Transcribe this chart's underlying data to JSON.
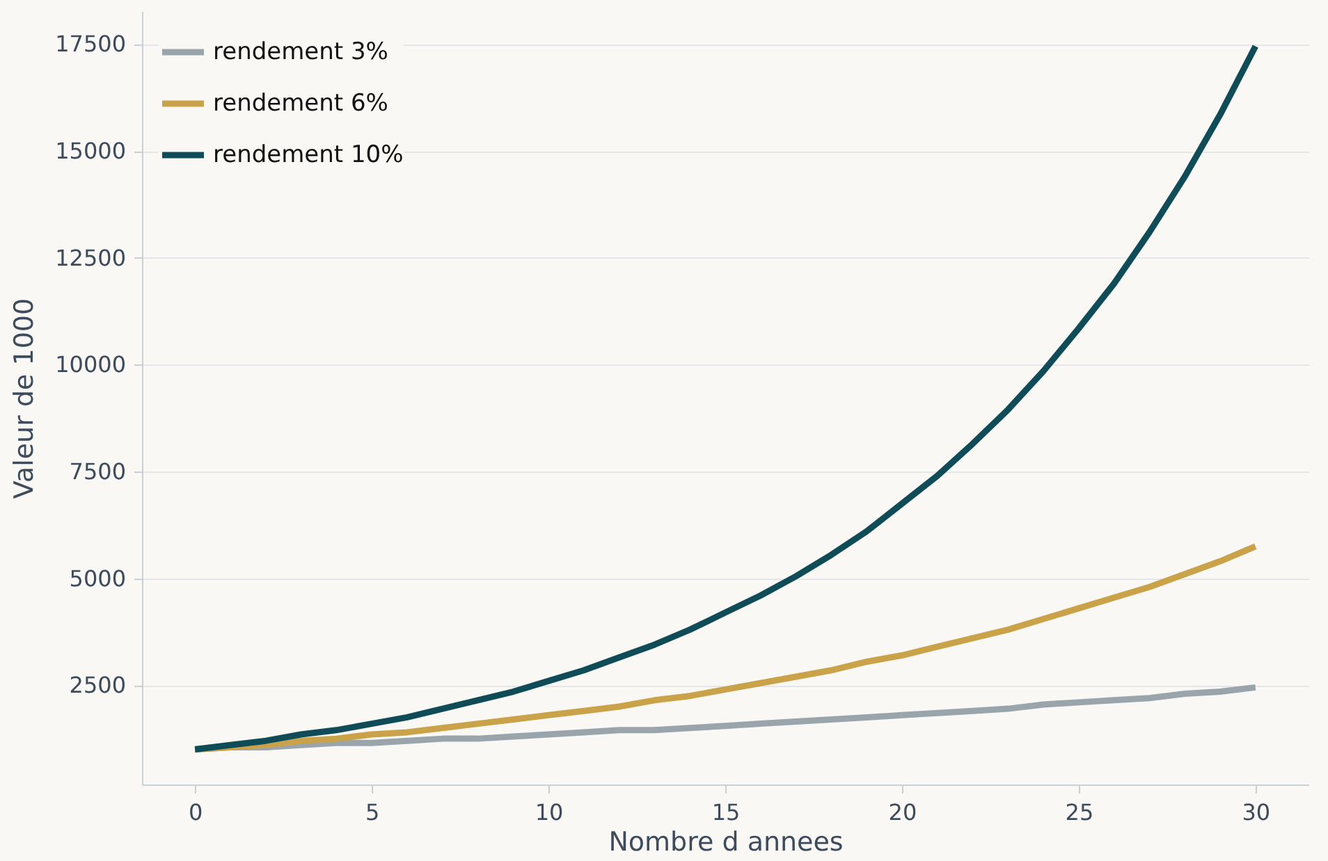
{
  "chart_data": {
    "type": "line",
    "xlabel": "Nombre d annees",
    "ylabel": "Valeur de 1000",
    "x": [
      0,
      1,
      2,
      3,
      4,
      5,
      6,
      7,
      8,
      9,
      10,
      11,
      12,
      13,
      14,
      15,
      16,
      17,
      18,
      19,
      20,
      21,
      22,
      23,
      24,
      25,
      26,
      27,
      28,
      29,
      30
    ],
    "series": [
      {
        "name": "rendement 3%",
        "color": "#9aa5ab",
        "values": [
          1000,
          1050,
          1050,
          1100,
          1150,
          1150,
          1200,
          1250,
          1250,
          1300,
          1350,
          1400,
          1450,
          1450,
          1500,
          1550,
          1600,
          1650,
          1700,
          1750,
          1800,
          1850,
          1900,
          1950,
          2050,
          2100,
          2150,
          2200,
          2300,
          2350,
          2450
        ]
      },
      {
        "name": "rendement 6%",
        "color": "#c9a24a",
        "values": [
          1000,
          1050,
          1100,
          1200,
          1250,
          1350,
          1400,
          1500,
          1600,
          1700,
          1800,
          1900,
          2000,
          2150,
          2250,
          2400,
          2550,
          2700,
          2850,
          3050,
          3200,
          3400,
          3600,
          3800,
          4050,
          4300,
          4550,
          4800,
          5100,
          5400,
          5750
        ]
      },
      {
        "name": "rendement 10%",
        "color": "#0f4c57",
        "values": [
          1000,
          1100,
          1200,
          1350,
          1450,
          1600,
          1750,
          1950,
          2150,
          2350,
          2600,
          2850,
          3150,
          3450,
          3800,
          4200,
          4600,
          5050,
          5550,
          6100,
          6750,
          7400,
          8150,
          8950,
          9850,
          10850,
          11900,
          13100,
          14400,
          15850,
          17450
        ]
      }
    ],
    "xlim": [
      -1.5,
      31.5
    ],
    "xticks": [
      0,
      5,
      10,
      15,
      20,
      25,
      30
    ],
    "ylim": [
      178,
      18272
    ],
    "yticks": [
      2500,
      5000,
      7500,
      10000,
      12500,
      15000,
      17500
    ],
    "grid": "y",
    "legend": "top left",
    "line_style": "solid",
    "marker": "none"
  }
}
